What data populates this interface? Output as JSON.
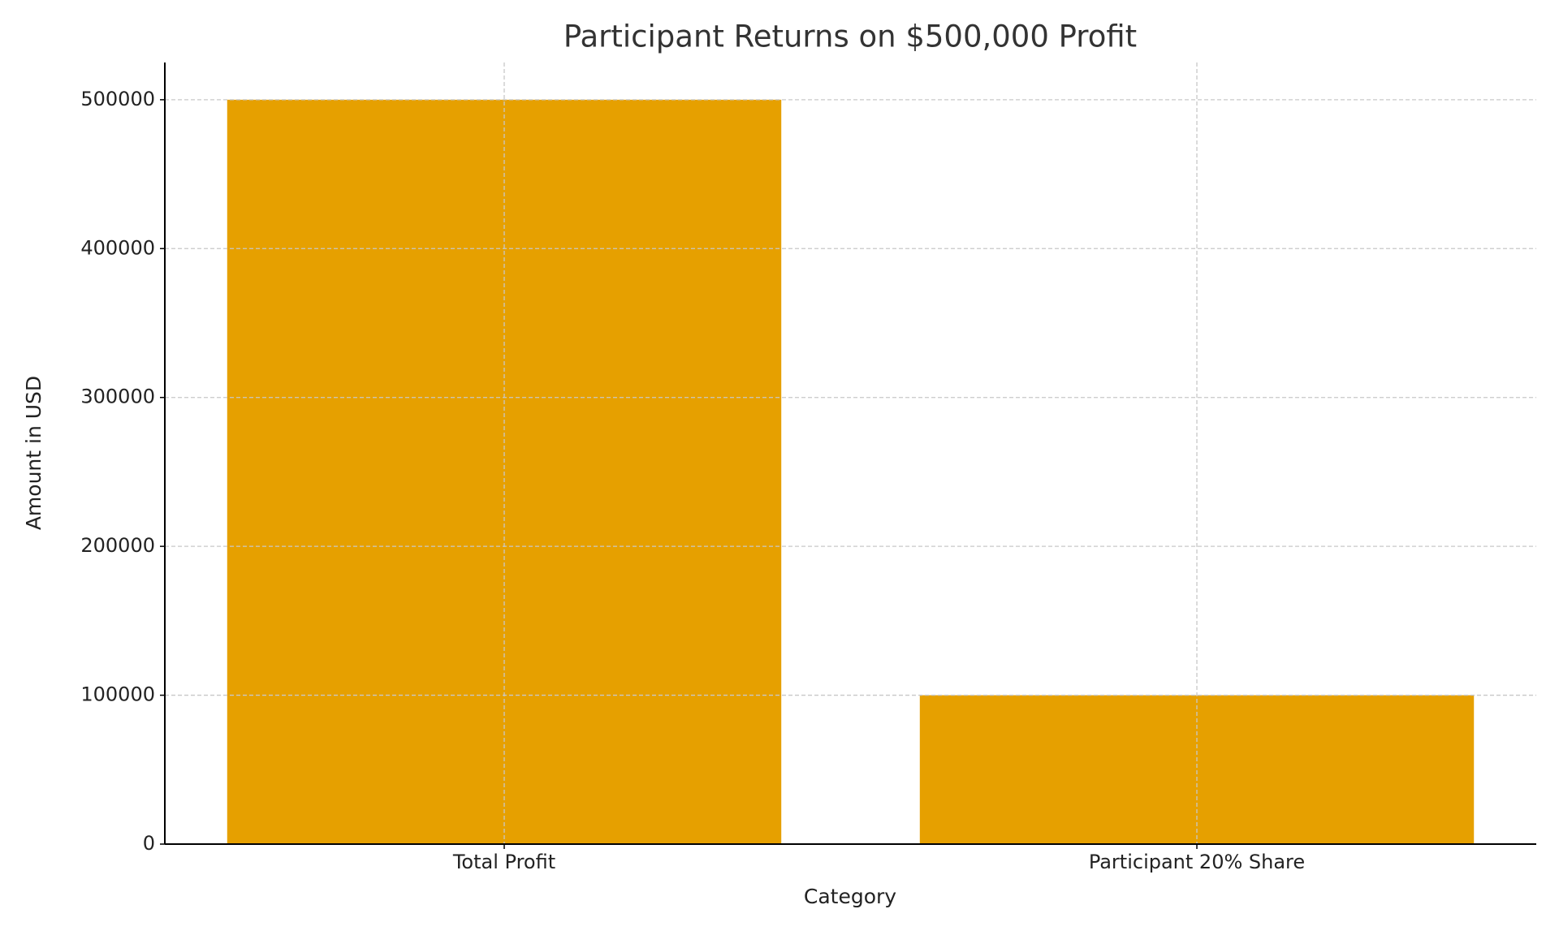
{
  "chart_data": {
    "type": "bar",
    "title": "Participant Returns on $500,000 Profit",
    "x_label": "Category",
    "y_label": "Amount in USD",
    "categories": [
      "Total Profit",
      "Participant 20% Share"
    ],
    "values": [
      500000,
      100000
    ],
    "color": "#e6a000",
    "ylim": [
      0,
      525000
    ],
    "yticks": [
      0,
      100000,
      200000,
      300000,
      400000,
      500000
    ],
    "grid": true
  }
}
